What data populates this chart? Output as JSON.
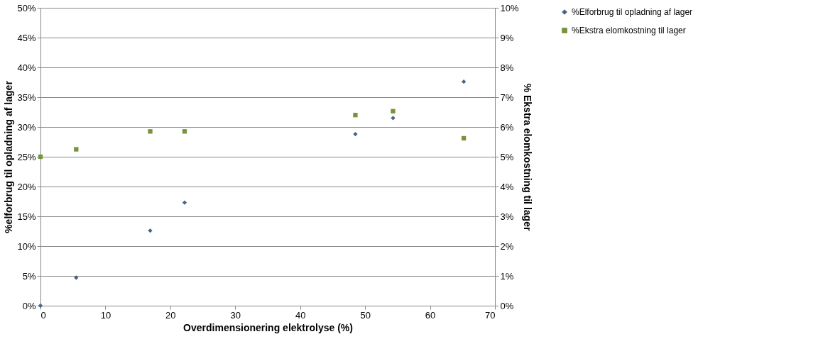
{
  "chart_data": {
    "type": "scatter",
    "xlabel": "Overdimensionering elektrolyse (%)",
    "ylabel": "%elforbrug til opladning af lager",
    "y2label": "% Ekstra elomkostning til lager",
    "series": [
      {
        "name": "%Elforbrug til opladning af lager",
        "color": "#4a6584",
        "marker": "diamond",
        "x": [
          0,
          5.5,
          16.9,
          22.2,
          48.5,
          54.3,
          65.2
        ],
        "values": [
          0,
          4.7,
          12.6,
          17.3,
          28.8,
          31.5,
          37.6
        ]
      },
      {
        "name": "%Ekstra elomkostning til lager",
        "color": "#77933c",
        "marker": "square",
        "axis": "y2",
        "x": [
          0,
          5.5,
          16.9,
          22.2,
          48.5,
          54.3,
          65.2
        ],
        "values": [
          5.0,
          5.25,
          5.85,
          5.85,
          6.4,
          6.53,
          5.62
        ]
      }
    ],
    "xlim": [
      0,
      70
    ],
    "xticks": [
      0,
      10,
      20,
      30,
      40,
      50,
      60,
      70
    ],
    "ylim": [
      0,
      50
    ],
    "yticks": [
      {
        "value": 0,
        "label": "0%"
      },
      {
        "value": 5,
        "label": "5%"
      },
      {
        "value": 10,
        "label": "10%"
      },
      {
        "value": 15,
        "label": "15%"
      },
      {
        "value": 20,
        "label": "20%"
      },
      {
        "value": 25,
        "label": "25%"
      },
      {
        "value": 30,
        "label": "30%"
      },
      {
        "value": 35,
        "label": "35%"
      },
      {
        "value": 40,
        "label": "40%"
      },
      {
        "value": 45,
        "label": "45%"
      },
      {
        "value": 50,
        "label": "50%"
      }
    ],
    "y2lim": [
      0,
      10
    ],
    "y2ticks": [
      {
        "value": 0,
        "label": "0%"
      },
      {
        "value": 1,
        "label": "1%"
      },
      {
        "value": 2,
        "label": "2%"
      },
      {
        "value": 3,
        "label": "3%"
      },
      {
        "value": 4,
        "label": "4%"
      },
      {
        "value": 5,
        "label": "5%"
      },
      {
        "value": 6,
        "label": "6%"
      },
      {
        "value": 7,
        "label": "7%"
      },
      {
        "value": 8,
        "label": "8%"
      },
      {
        "value": 9,
        "label": "9%"
      },
      {
        "value": 10,
        "label": "10%"
      }
    ],
    "grid": "y",
    "legend": "top right"
  }
}
